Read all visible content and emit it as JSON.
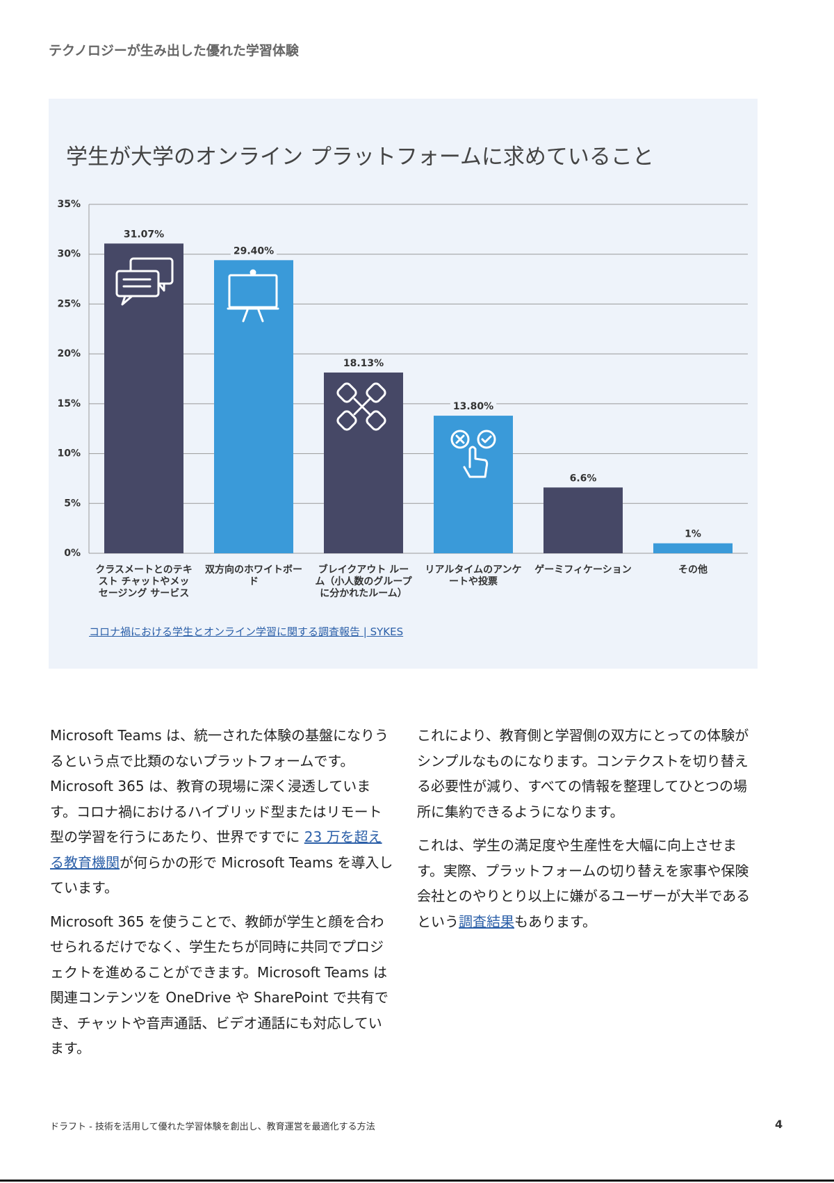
{
  "header": {
    "title": "テクノロジーが生み出した優れた学習体験"
  },
  "chart_data": {
    "type": "bar",
    "title": "学生が大学のオンライン プラットフォームに求めていること",
    "categories": [
      "クラスメートとのテキスト チャットやメッセージング サービス",
      "双方向のホワイトボード",
      "ブレイクアウト ルーム（小人数のグループに分かれたルーム）",
      "リアルタイムのアンケートや投票",
      "ゲーミフィケーション",
      "その他"
    ],
    "values": [
      31.07,
      29.4,
      18.13,
      13.8,
      6.6,
      1
    ],
    "value_labels": [
      "31.07%",
      "29.40%",
      "18.13%",
      "13.80%",
      "6.6%",
      "1%"
    ],
    "colors": [
      "#464866",
      "#3a9ad9",
      "#464866",
      "#3a9ad9",
      "#464866",
      "#3a9ad9"
    ],
    "ylim": [
      0,
      35
    ],
    "yticks": [
      {
        "value": 0,
        "label": "0%"
      },
      {
        "value": 5,
        "label": "5%"
      },
      {
        "value": 10,
        "label": "10%"
      },
      {
        "value": 15,
        "label": "15%"
      },
      {
        "value": 20,
        "label": "20%"
      },
      {
        "value": 25,
        "label": "25%"
      },
      {
        "value": 30,
        "label": "30%"
      },
      {
        "value": 35,
        "label": "35%"
      }
    ],
    "grid": true,
    "source": "コロナ禍における学生とオンライン学習に関する調査報告 | SYKES"
  },
  "body": {
    "left": [
      [
        {
          "text": "Microsoft Teams は、統一された体験の基盤になりうるという点で比類のないプラットフォームです。Microsoft 365 は、教育の現場に深く浸透しています。コロナ禍におけるハイブリッド型またはリモート型の学習を行うにあたり、世界ですでに "
        },
        {
          "link": "23 万を超える教育機関"
        },
        {
          "text": "が何らかの形で Microsoft Teams を導入しています。"
        }
      ],
      [
        {
          "text": "Microsoft 365 を使うことで、教師が学生と顔を合わせられるだけでなく、学生たちが同時に共同でプロジェクトを進めることができます。Microsoft Teams は関連コンテンツを OneDrive や SharePoint で共有でき、チャットや音声通話、ビデオ通話にも対応しています。"
        }
      ]
    ],
    "right": [
      [
        {
          "text": "これにより、教育側と学習側の双方にとっての体験がシンプルなものになります。コンテクストを切り替える必要性が減り、すべての情報を整理してひとつの場所に集約できるようになります。"
        }
      ],
      [
        {
          "text": "これは、学生の満足度や生産性を大幅に向上させます。実際、プラットフォームの切り替えを家事や保険会社とのやりとり以上に嫌がるユーザーが大半であるという"
        },
        {
          "link": "調査結果"
        },
        {
          "text": "もあります。"
        }
      ]
    ]
  },
  "footer": {
    "text": "ドラフト - 技術を活用して優れた学習体験を創出し、教育運営を最適化する方法",
    "page": "4"
  }
}
